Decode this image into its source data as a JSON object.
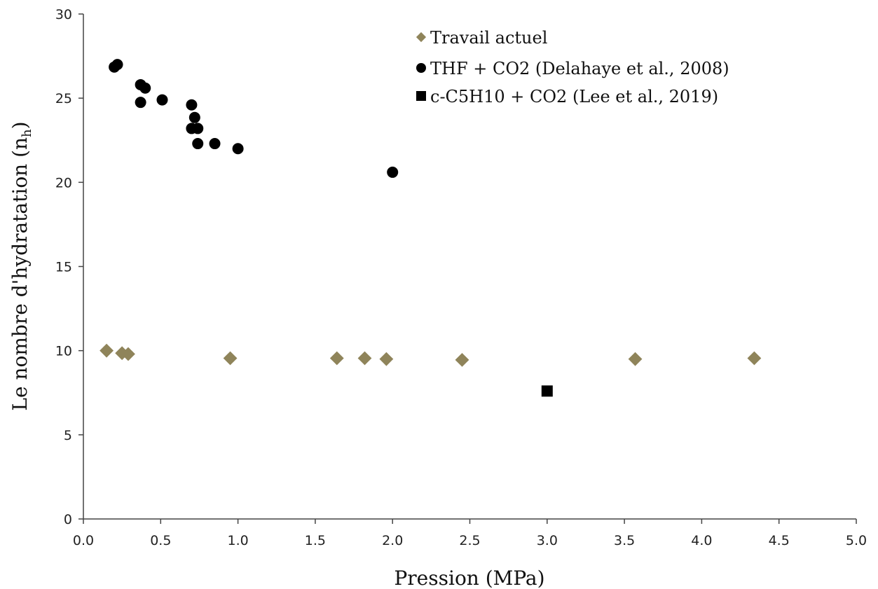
{
  "chart_data": {
    "type": "scatter",
    "title": "",
    "xlabel": "Pression (MPa)",
    "ylabel": "Le nombre d'hydratation (n",
    "ylabel_sub": "h",
    "ylabel_close": ")",
    "xlim": [
      0.0,
      5.0
    ],
    "ylim": [
      0,
      30
    ],
    "x_ticks": [
      0.0,
      0.5,
      1.0,
      1.5,
      2.0,
      2.5,
      3.0,
      3.5,
      4.0,
      4.5,
      5.0
    ],
    "x_tick_labels": [
      "0.0",
      "0.5",
      "1.0",
      "1.5",
      "2.0",
      "2.5",
      "3.0",
      "3.5",
      "4.0",
      "4.5",
      "5.0"
    ],
    "y_ticks": [
      0,
      5,
      10,
      15,
      20,
      25,
      30
    ],
    "y_tick_labels": [
      "0",
      "5",
      "10",
      "15",
      "20",
      "25",
      "30"
    ],
    "grid": false,
    "legend_position": "top-right",
    "series": [
      {
        "name": "Travail actuel",
        "marker": "diamond",
        "color": "#8f845a",
        "x": [
          0.15,
          0.25,
          0.29,
          0.95,
          1.64,
          1.82,
          1.96,
          2.45,
          3.57,
          4.34
        ],
        "y": [
          10.0,
          9.85,
          9.8,
          9.55,
          9.55,
          9.55,
          9.5,
          9.45,
          9.5,
          9.55
        ]
      },
      {
        "name": "THF + CO2 (Delahaye et al., 2008)",
        "marker": "circle",
        "color": "#000000",
        "x": [
          0.2,
          0.22,
          0.37,
          0.37,
          0.4,
          0.51,
          0.7,
          0.7,
          0.72,
          0.74,
          0.74,
          0.85,
          1.0,
          2.0
        ],
        "y": [
          26.85,
          27.0,
          25.8,
          24.75,
          25.6,
          24.9,
          24.6,
          23.2,
          23.85,
          23.2,
          22.3,
          22.3,
          22.0,
          20.6
        ]
      },
      {
        "name": "c-C5H10 + CO2 (Lee et al., 2019)",
        "marker": "square",
        "color": "#000000",
        "x": [
          3.0
        ],
        "y": [
          7.6
        ]
      }
    ]
  }
}
